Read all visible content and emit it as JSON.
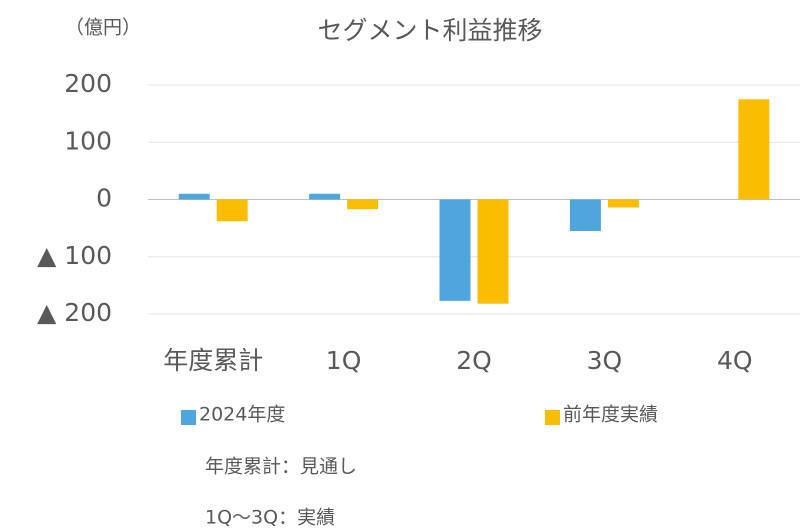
{
  "chart_data": {
    "type": "bar",
    "title": "セグメント利益推移",
    "unit_label": "（億円）",
    "categories": [
      "年度累計",
      "1Q",
      "2Q",
      "3Q",
      "4Q"
    ],
    "series": [
      {
        "name": "2024年度",
        "color": "#4ea6dc",
        "values": [
          10,
          10,
          -177,
          -55,
          null
        ]
      },
      {
        "name": "前年度実績",
        "color": "#fbbd00",
        "values": [
          -38,
          -17,
          -182,
          -14,
          175
        ]
      }
    ],
    "ylim": [
      -200,
      200
    ],
    "yticks": [
      200,
      100,
      0,
      {
        "value": -100,
        "label": "▲ 100"
      },
      {
        "value": -200,
        "label": "▲ 200"
      }
    ],
    "grid": true,
    "notes": [
      "年度累計：見通し",
      "1Q～3Q：実績"
    ]
  }
}
